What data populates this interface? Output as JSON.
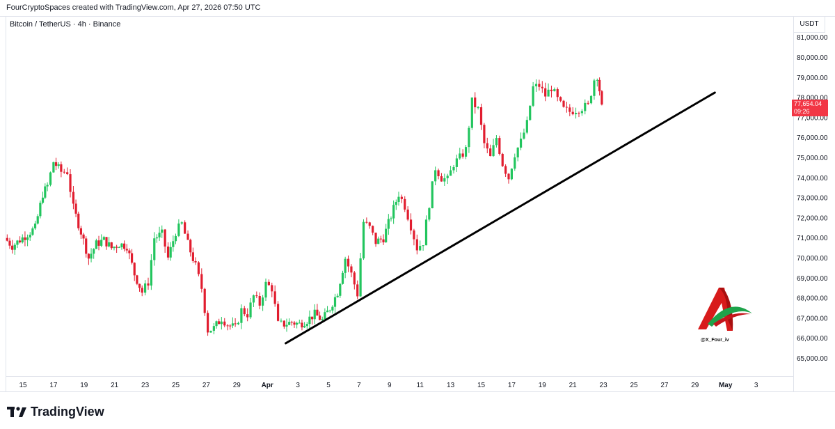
{
  "header": {
    "title": "FourCryptoSpaces created with TradingView.com, Apr 27, 2026 07:50 UTC"
  },
  "symbol_line": "Bitcoin / TetherUS · 4h · Binance",
  "currency": "USDT",
  "price_label": {
    "price": "77,654.04",
    "countdown": "09:26"
  },
  "watermark_text": "@X_Four_iv",
  "footer": {
    "brand": "TradingView"
  },
  "colors": {
    "up": "#22c55e",
    "down": "#e11d2f",
    "trendline": "#000000",
    "price_label_bg": "#f23645"
  },
  "chart_data": {
    "type": "candlestick",
    "symbol": "Bitcoin / TetherUS",
    "interval": "4h",
    "exchange": "Binance",
    "ylim": [
      64500,
      81500
    ],
    "y_ticks": [
      65000,
      66000,
      67000,
      68000,
      69000,
      70000,
      71000,
      72000,
      73000,
      74000,
      75000,
      76000,
      77000,
      78000,
      79000,
      80000,
      81000
    ],
    "x_ticks": [
      {
        "day": 15,
        "label": "15",
        "bold": false
      },
      {
        "day": 17,
        "label": "17",
        "bold": false
      },
      {
        "day": 19,
        "label": "19",
        "bold": false
      },
      {
        "day": 21,
        "label": "21",
        "bold": false
      },
      {
        "day": 23,
        "label": "23",
        "bold": false
      },
      {
        "day": 25,
        "label": "25",
        "bold": false
      },
      {
        "day": 27,
        "label": "27",
        "bold": false
      },
      {
        "day": 29,
        "label": "29",
        "bold": false
      },
      {
        "day": 31,
        "label": "Apr",
        "bold": true
      },
      {
        "day": 33,
        "label": "3",
        "bold": false
      },
      {
        "day": 35,
        "label": "5",
        "bold": false
      },
      {
        "day": 37,
        "label": "7",
        "bold": false
      },
      {
        "day": 39,
        "label": "9",
        "bold": false
      },
      {
        "day": 41,
        "label": "11",
        "bold": false
      },
      {
        "day": 43,
        "label": "13",
        "bold": false
      },
      {
        "day": 45,
        "label": "15",
        "bold": false
      },
      {
        "day": 47,
        "label": "17",
        "bold": false
      },
      {
        "day": 49,
        "label": "19",
        "bold": false
      },
      {
        "day": 51,
        "label": "21",
        "bold": false
      },
      {
        "day": 53,
        "label": "23",
        "bold": false
      },
      {
        "day": 55,
        "label": "25",
        "bold": false
      },
      {
        "day": 57,
        "label": "27",
        "bold": false
      },
      {
        "day": 59,
        "label": "29",
        "bold": false
      },
      {
        "day": 61,
        "label": "May",
        "bold": true
      },
      {
        "day": 63,
        "label": "3",
        "bold": false
      }
    ],
    "last_price": 77654.04,
    "anchors": [
      [
        13.8,
        71000
      ],
      [
        14.3,
        70600
      ],
      [
        14.8,
        70900
      ],
      [
        15.3,
        71200
      ],
      [
        15.8,
        71500
      ],
      [
        16.3,
        73200
      ],
      [
        16.6,
        73600
      ],
      [
        17.0,
        74800
      ],
      [
        17.5,
        74300
      ],
      [
        17.9,
        74300
      ],
      [
        18.3,
        72500
      ],
      [
        18.8,
        71300
      ],
      [
        19.3,
        70000
      ],
      [
        19.8,
        70700
      ],
      [
        20.3,
        70900
      ],
      [
        20.8,
        70500
      ],
      [
        21.3,
        70700
      ],
      [
        21.8,
        70600
      ],
      [
        22.3,
        69200
      ],
      [
        22.8,
        68300
      ],
      [
        23.2,
        68800
      ],
      [
        23.6,
        71000
      ],
      [
        24.1,
        71200
      ],
      [
        24.5,
        70000
      ],
      [
        25.0,
        71300
      ],
      [
        25.4,
        71700
      ],
      [
        25.8,
        70700
      ],
      [
        26.3,
        69600
      ],
      [
        26.7,
        68500
      ],
      [
        27.1,
        66400
      ],
      [
        27.5,
        66500
      ],
      [
        28.0,
        67000
      ],
      [
        28.4,
        66700
      ],
      [
        28.9,
        66500
      ],
      [
        29.3,
        67400
      ],
      [
        29.7,
        67200
      ],
      [
        30.1,
        68100
      ],
      [
        30.5,
        67700
      ],
      [
        30.9,
        68700
      ],
      [
        31.3,
        68500
      ],
      [
        31.7,
        66700
      ],
      [
        32.1,
        66700
      ],
      [
        32.6,
        66800
      ],
      [
        33.1,
        66700
      ],
      [
        33.6,
        66900
      ],
      [
        34.1,
        67200
      ],
      [
        34.6,
        66900
      ],
      [
        35.1,
        67500
      ],
      [
        35.6,
        68300
      ],
      [
        36.1,
        70000
      ],
      [
        36.5,
        69200
      ],
      [
        36.9,
        68200
      ],
      [
        37.3,
        71800
      ],
      [
        37.7,
        71500
      ],
      [
        38.1,
        70800
      ],
      [
        38.6,
        71000
      ],
      [
        39.1,
        72100
      ],
      [
        39.6,
        73200
      ],
      [
        40.0,
        72600
      ],
      [
        40.4,
        71600
      ],
      [
        40.8,
        70500
      ],
      [
        41.2,
        70800
      ],
      [
        41.6,
        72700
      ],
      [
        42.0,
        74500
      ],
      [
        42.4,
        74000
      ],
      [
        42.8,
        73900
      ],
      [
        43.2,
        74700
      ],
      [
        43.6,
        75000
      ],
      [
        44.0,
        75400
      ],
      [
        44.4,
        77800
      ],
      [
        44.8,
        77400
      ],
      [
        45.2,
        75700
      ],
      [
        45.6,
        75000
      ],
      [
        46.0,
        76000
      ],
      [
        46.4,
        74700
      ],
      [
        46.8,
        74000
      ],
      [
        47.2,
        75200
      ],
      [
        47.6,
        75800
      ],
      [
        48.0,
        76700
      ],
      [
        48.4,
        78500
      ],
      [
        48.8,
        78600
      ],
      [
        49.2,
        78100
      ],
      [
        49.6,
        78500
      ],
      [
        50.0,
        77900
      ],
      [
        50.4,
        77400
      ],
      [
        50.8,
        77300
      ],
      [
        51.2,
        77400
      ],
      [
        51.6,
        77500
      ],
      [
        52.0,
        77600
      ],
      [
        52.4,
        78900
      ],
      [
        52.6,
        79100
      ],
      [
        52.9,
        77654
      ]
    ],
    "trendline": {
      "start": {
        "day": 32.2,
        "price": 65750
      },
      "end": {
        "day": 60.3,
        "price": 78250
      }
    }
  }
}
